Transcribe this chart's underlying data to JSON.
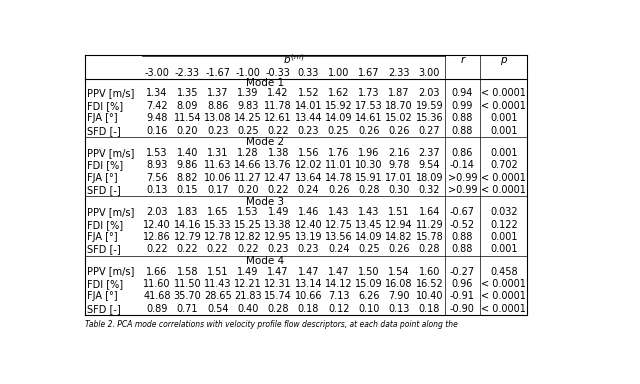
{
  "b_header": "b^{(m)}",
  "b_values": [
    "-3.00",
    "-2.33",
    "-1.67",
    "-1.00",
    "-0.33",
    "0.33",
    "1.00",
    "1.67",
    "2.33",
    "3.00"
  ],
  "col_r": "r",
  "col_p": "p",
  "modes": [
    "Mode 1",
    "Mode 2",
    "Mode 3",
    "Mode 4"
  ],
  "row_labels": [
    [
      "PPV [m/s]",
      "FDI [%]",
      "FJA [°]",
      "SFD [-]"
    ],
    [
      "PPV [m/s]",
      "FDI [%]",
      "FJA [°]",
      "SFD [-]"
    ],
    [
      "PPV [m/s]",
      "FDI [%]",
      "FJA [°]",
      "SFD [-]"
    ],
    [
      "PPV [m/s]",
      "FDI [%]",
      "FJA [°]",
      "SFD [-]"
    ]
  ],
  "data": [
    [
      [
        "1.34",
        "1.35",
        "1.37",
        "1.39",
        "1.42",
        "1.52",
        "1.62",
        "1.73",
        "1.87",
        "2.03"
      ],
      [
        "7.42",
        "8.09",
        "8.86",
        "9.83",
        "11.78",
        "14.01",
        "15.92",
        "17.53",
        "18.70",
        "19.59"
      ],
      [
        "9.48",
        "11.54",
        "13.08",
        "14.25",
        "12.61",
        "13.44",
        "14.09",
        "14.61",
        "15.02",
        "15.36"
      ],
      [
        "0.16",
        "0.20",
        "0.23",
        "0.25",
        "0.22",
        "0.23",
        "0.25",
        "0.26",
        "0.26",
        "0.27"
      ]
    ],
    [
      [
        "1.53",
        "1.40",
        "1.31",
        "1.28",
        "1.38",
        "1.56",
        "1.76",
        "1.96",
        "2.16",
        "2.37"
      ],
      [
        "8.93",
        "9.86",
        "11.63",
        "14.66",
        "13.76",
        "12.02",
        "11.01",
        "10.30",
        "9.78",
        "9.54"
      ],
      [
        "7.56",
        "8.82",
        "10.06",
        "11.27",
        "12.47",
        "13.64",
        "14.78",
        "15.91",
        "17.01",
        "18.09"
      ],
      [
        "0.13",
        "0.15",
        "0.17",
        "0.20",
        "0.22",
        "0.24",
        "0.26",
        "0.28",
        "0.30",
        "0.32"
      ]
    ],
    [
      [
        "2.03",
        "1.83",
        "1.65",
        "1.53",
        "1.49",
        "1.46",
        "1.43",
        "1.43",
        "1.51",
        "1.64"
      ],
      [
        "12.40",
        "14.16",
        "15.33",
        "15.25",
        "13.38",
        "12.40",
        "12.75",
        "13.45",
        "12.94",
        "11.29"
      ],
      [
        "12.86",
        "12.79",
        "12.78",
        "12.82",
        "12.95",
        "13.19",
        "13.56",
        "14.09",
        "14.82",
        "15.78"
      ],
      [
        "0.22",
        "0.22",
        "0.22",
        "0.22",
        "0.23",
        "0.23",
        "0.24",
        "0.25",
        "0.26",
        "0.28"
      ]
    ],
    [
      [
        "1.66",
        "1.58",
        "1.51",
        "1.49",
        "1.47",
        "1.47",
        "1.47",
        "1.50",
        "1.54",
        "1.60"
      ],
      [
        "11.60",
        "11.50",
        "11.43",
        "12.21",
        "12.31",
        "13.14",
        "14.12",
        "15.09",
        "16.08",
        "16.52"
      ],
      [
        "41.68",
        "35.70",
        "28.65",
        "21.83",
        "15.74",
        "10.66",
        "7.13",
        "6.26",
        "7.90",
        "10.40"
      ],
      [
        "0.89",
        "0.71",
        "0.54",
        "0.40",
        "0.28",
        "0.18",
        "0.12",
        "0.10",
        "0.13",
        "0.18"
      ]
    ]
  ],
  "r_values": [
    [
      "0.94",
      "0.99",
      "0.88",
      "0.88"
    ],
    [
      "0.86",
      "-0.14",
      ">0.99",
      ">0.99"
    ],
    [
      "-0.67",
      "-0.52",
      "0.88",
      "0.88"
    ],
    [
      "-0.27",
      "0.96",
      "-0.91",
      "-0.90"
    ]
  ],
  "p_values": [
    [
      "< 0.0001",
      "< 0.0001",
      "0.001",
      "0.001"
    ],
    [
      "0.001",
      "0.702",
      "< 0.0001",
      "< 0.0001"
    ],
    [
      "0.032",
      "0.122",
      "0.001",
      "0.001"
    ],
    [
      "0.458",
      "< 0.0001",
      "< 0.0001",
      "< 0.0001"
    ]
  ],
  "caption": "Table 2. PCA mode correlations with velocity profile flow descriptors, at each data point along the"
}
